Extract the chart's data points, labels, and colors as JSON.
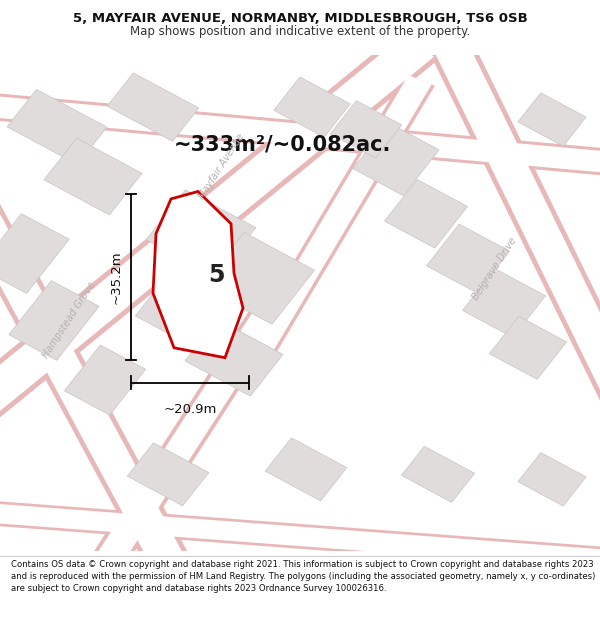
{
  "title_line1": "5, MAYFAIR AVENUE, NORMANBY, MIDDLESBROUGH, TS6 0SB",
  "title_line2": "Map shows position and indicative extent of the property.",
  "area_text": "~333m²/~0.082ac.",
  "property_number": "5",
  "dim_height": "~35.2m",
  "dim_width": "~20.9m",
  "footer_text": "Contains OS data © Crown copyright and database right 2021. This information is subject to Crown copyright and database rights 2023 and is reproduced with the permission of HM Land Registry. The polygons (including the associated geometry, namely x, y co-ordinates) are subject to Crown copyright and database rights 2023 Ordnance Survey 100026316.",
  "map_bg": "#f2f0f0",
  "road_fill": "#ffffff",
  "road_edge": "#e8b8b8",
  "block_fill": "#e0dcdc",
  "block_edge": "#c8c4c4",
  "prop_fill": "#ffffff",
  "prop_edge": "#cc0000",
  "dim_color": "#000000",
  "street_label_color": "#b8b0b0",
  "title_color": "#111111",
  "footer_color": "#111111"
}
